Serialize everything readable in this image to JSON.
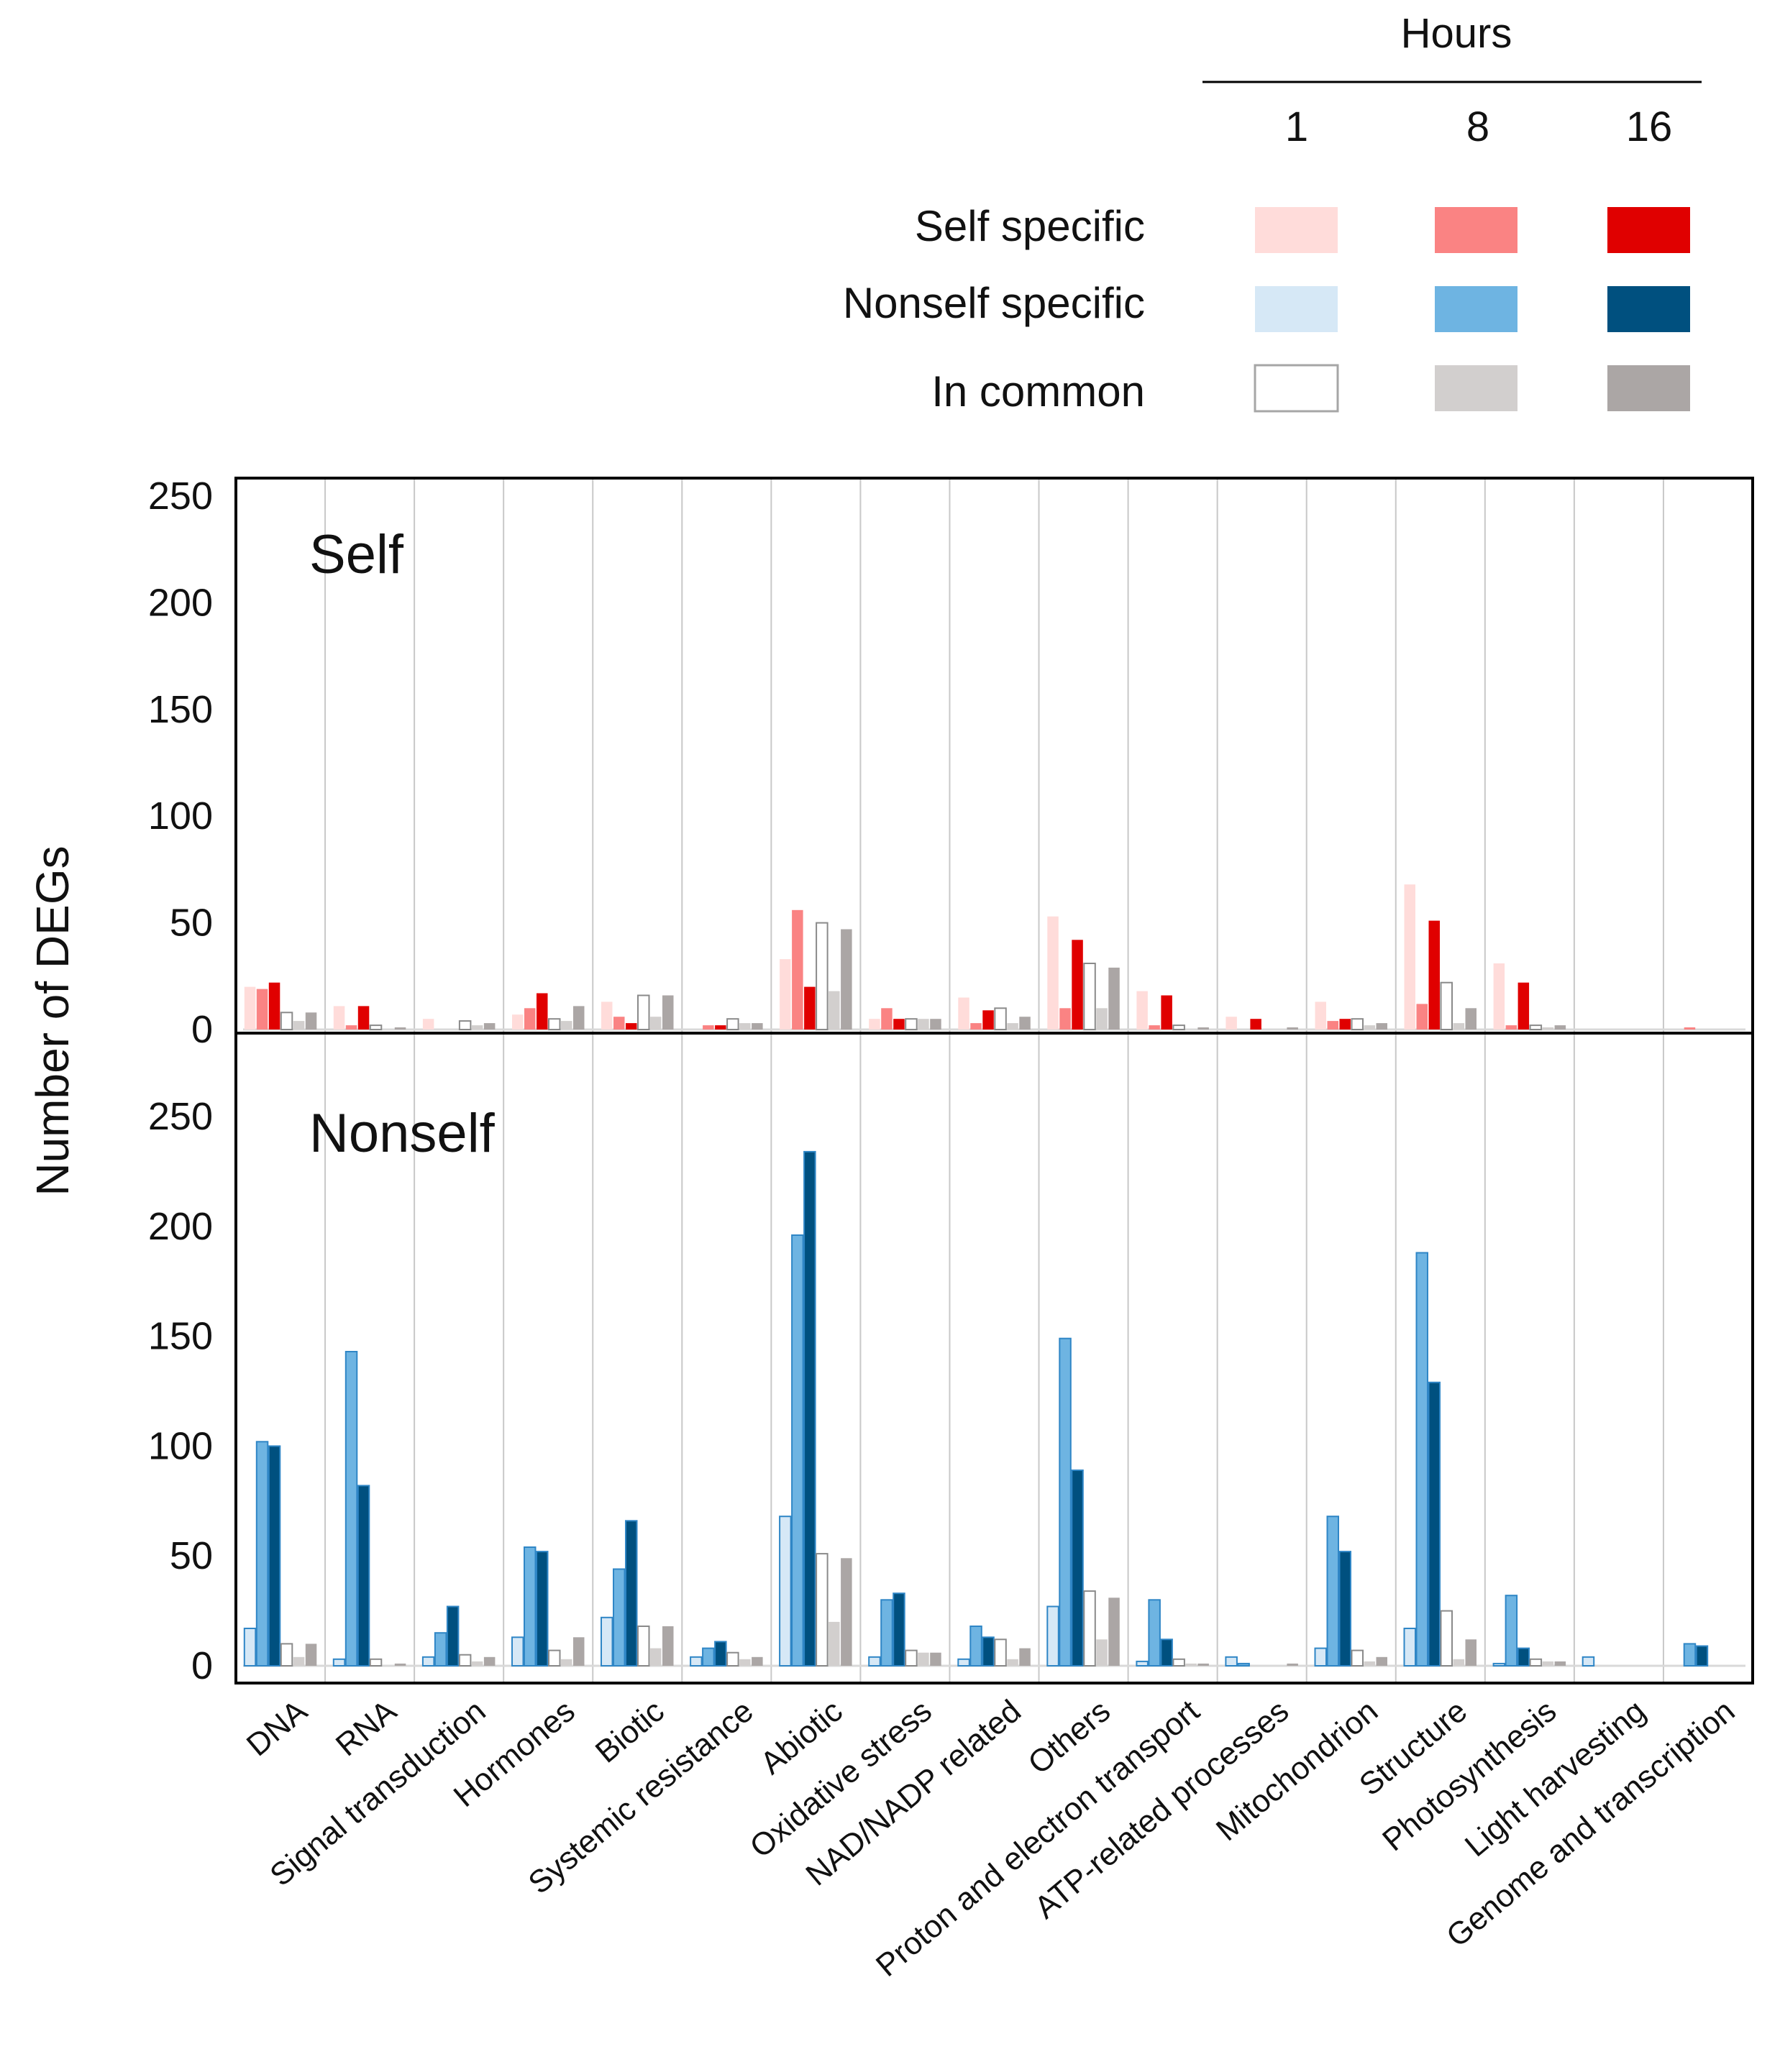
{
  "legend": {
    "title": "Hours",
    "hours": [
      "1",
      "8",
      "16"
    ],
    "rows": [
      {
        "label": "Self specific",
        "colors": [
          "#FFDCDA",
          "#FA8383",
          "#E00000"
        ]
      },
      {
        "label": "Nonself specific",
        "colors": [
          "#D6E8F6",
          "#6EB4E2",
          "#00507F"
        ]
      },
      {
        "label": "In common",
        "colors": [
          "#FFFFFF",
          "#D2CFCE",
          "#ABA6A5"
        ]
      }
    ]
  },
  "y_axis_label": "Number of DEGs",
  "chart_data": [
    {
      "type": "bar",
      "title": "Self",
      "xlabel": "",
      "ylabel": "Number of DEGs",
      "ylim": [
        0,
        250
      ],
      "yticks": [
        0,
        50,
        100,
        150,
        200,
        250
      ],
      "categories": [
        "DNA",
        "RNA",
        "Signal transduction",
        "Hormones",
        "Biotic",
        "Systemic resistance",
        "Abiotic",
        "Oxidative stress",
        "NAD/NADP related",
        "Others",
        "Proton and electron transport",
        "ATP-related processes",
        "Mitochondrion",
        "Structure",
        "Photosynthesis",
        "Light harvesting",
        "Genome and transcription"
      ],
      "series": [
        {
          "name": "Self specific 1 h",
          "color": "#FFDCDA",
          "values": [
            20,
            11,
            5,
            7,
            13,
            0,
            33,
            5,
            15,
            53,
            18,
            6,
            13,
            68,
            31,
            0,
            0
          ]
        },
        {
          "name": "Self specific 8 h",
          "color": "#FA8383",
          "values": [
            19,
            2,
            0,
            10,
            6,
            2,
            56,
            10,
            3,
            10,
            2,
            0,
            4,
            12,
            2,
            0,
            1
          ]
        },
        {
          "name": "Self specific 16 h",
          "color": "#E00000",
          "values": [
            22,
            11,
            0,
            17,
            3,
            2,
            20,
            5,
            9,
            42,
            16,
            5,
            5,
            51,
            22,
            0,
            0
          ]
        },
        {
          "name": "In common 1 h",
          "color": "#FFFFFF",
          "values": [
            8,
            2,
            4,
            5,
            16,
            5,
            50,
            5,
            10,
            31,
            2,
            0,
            5,
            22,
            2,
            0,
            0
          ]
        },
        {
          "name": "In common 8 h",
          "color": "#D2CFCE",
          "values": [
            4,
            0,
            2,
            4,
            6,
            3,
            18,
            5,
            3,
            10,
            0,
            0,
            2,
            3,
            1,
            0,
            0
          ]
        },
        {
          "name": "In common 16 h",
          "color": "#ABA6A5",
          "values": [
            8,
            1,
            3,
            11,
            16,
            3,
            47,
            5,
            6,
            29,
            1,
            1,
            3,
            10,
            2,
            0,
            0
          ]
        }
      ]
    },
    {
      "type": "bar",
      "title": "Nonself",
      "xlabel": "",
      "ylabel": "Number of DEGs",
      "ylim": [
        0,
        250
      ],
      "yticks": [
        0,
        50,
        100,
        150,
        200,
        250
      ],
      "categories": [
        "DNA",
        "RNA",
        "Signal transduction",
        "Hormones",
        "Biotic",
        "Systemic resistance",
        "Abiotic",
        "Oxidative stress",
        "NAD/NADP related",
        "Others",
        "Proton and electron transport",
        "ATP-related processes",
        "Mitochondrion",
        "Structure",
        "Photosynthesis",
        "Light harvesting",
        "Genome and transcription"
      ],
      "series": [
        {
          "name": "Nonself specific 1 h",
          "color": "#D6E8F6",
          "values": [
            17,
            3,
            4,
            13,
            22,
            4,
            68,
            4,
            3,
            27,
            2,
            4,
            8,
            17,
            1,
            4,
            0
          ]
        },
        {
          "name": "Nonself specific 8 h",
          "color": "#6EB4E2",
          "values": [
            102,
            143,
            15,
            54,
            44,
            8,
            196,
            30,
            18,
            149,
            30,
            1,
            68,
            188,
            32,
            0,
            10
          ]
        },
        {
          "name": "Nonself specific 16 h",
          "color": "#00507F",
          "values": [
            100,
            82,
            27,
            52,
            66,
            11,
            234,
            33,
            13,
            89,
            12,
            0,
            52,
            129,
            8,
            0,
            9
          ]
        },
        {
          "name": "In common 1 h",
          "color": "#FFFFFF",
          "values": [
            10,
            3,
            5,
            7,
            18,
            6,
            51,
            7,
            12,
            34,
            3,
            0,
            7,
            25,
            3,
            0,
            0
          ]
        },
        {
          "name": "In common 8 h",
          "color": "#D2CFCE",
          "values": [
            4,
            0,
            2,
            3,
            8,
            3,
            20,
            6,
            3,
            12,
            1,
            0,
            2,
            3,
            2,
            0,
            0
          ]
        },
        {
          "name": "In common 16 h",
          "color": "#ABA6A5",
          "values": [
            10,
            1,
            4,
            13,
            18,
            4,
            49,
            6,
            8,
            31,
            1,
            1,
            4,
            12,
            2,
            0,
            0
          ]
        }
      ]
    }
  ]
}
